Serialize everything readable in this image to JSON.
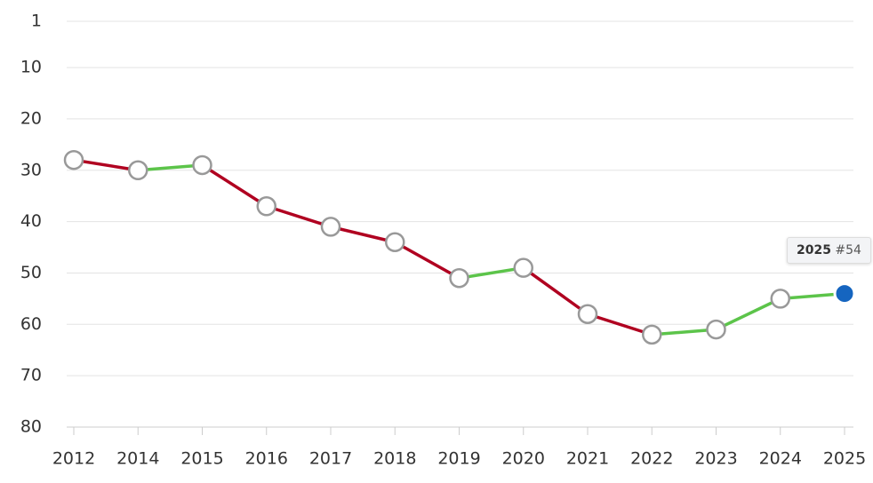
{
  "chart_data": {
    "type": "line",
    "categories": [
      "2012",
      "2014",
      "2015",
      "2016",
      "2017",
      "2018",
      "2019",
      "2020",
      "2021",
      "2022",
      "2023",
      "2024",
      "2025"
    ],
    "values": [
      28,
      30,
      29,
      37,
      41,
      44,
      51,
      49,
      58,
      62,
      61,
      55,
      54
    ],
    "value_labels": [
      null,
      null,
      null,
      null,
      null,
      null,
      null,
      null,
      null,
      null,
      null,
      null,
      "#54"
    ],
    "ylim": [
      1,
      80
    ],
    "y_inverted": true,
    "yticks": [
      1,
      10,
      20,
      30,
      40,
      50,
      60,
      70,
      80
    ],
    "grid": true,
    "worse_color": "#b00020",
    "better_color": "#5cc44a",
    "highlight_color": "#1565c0"
  }
}
